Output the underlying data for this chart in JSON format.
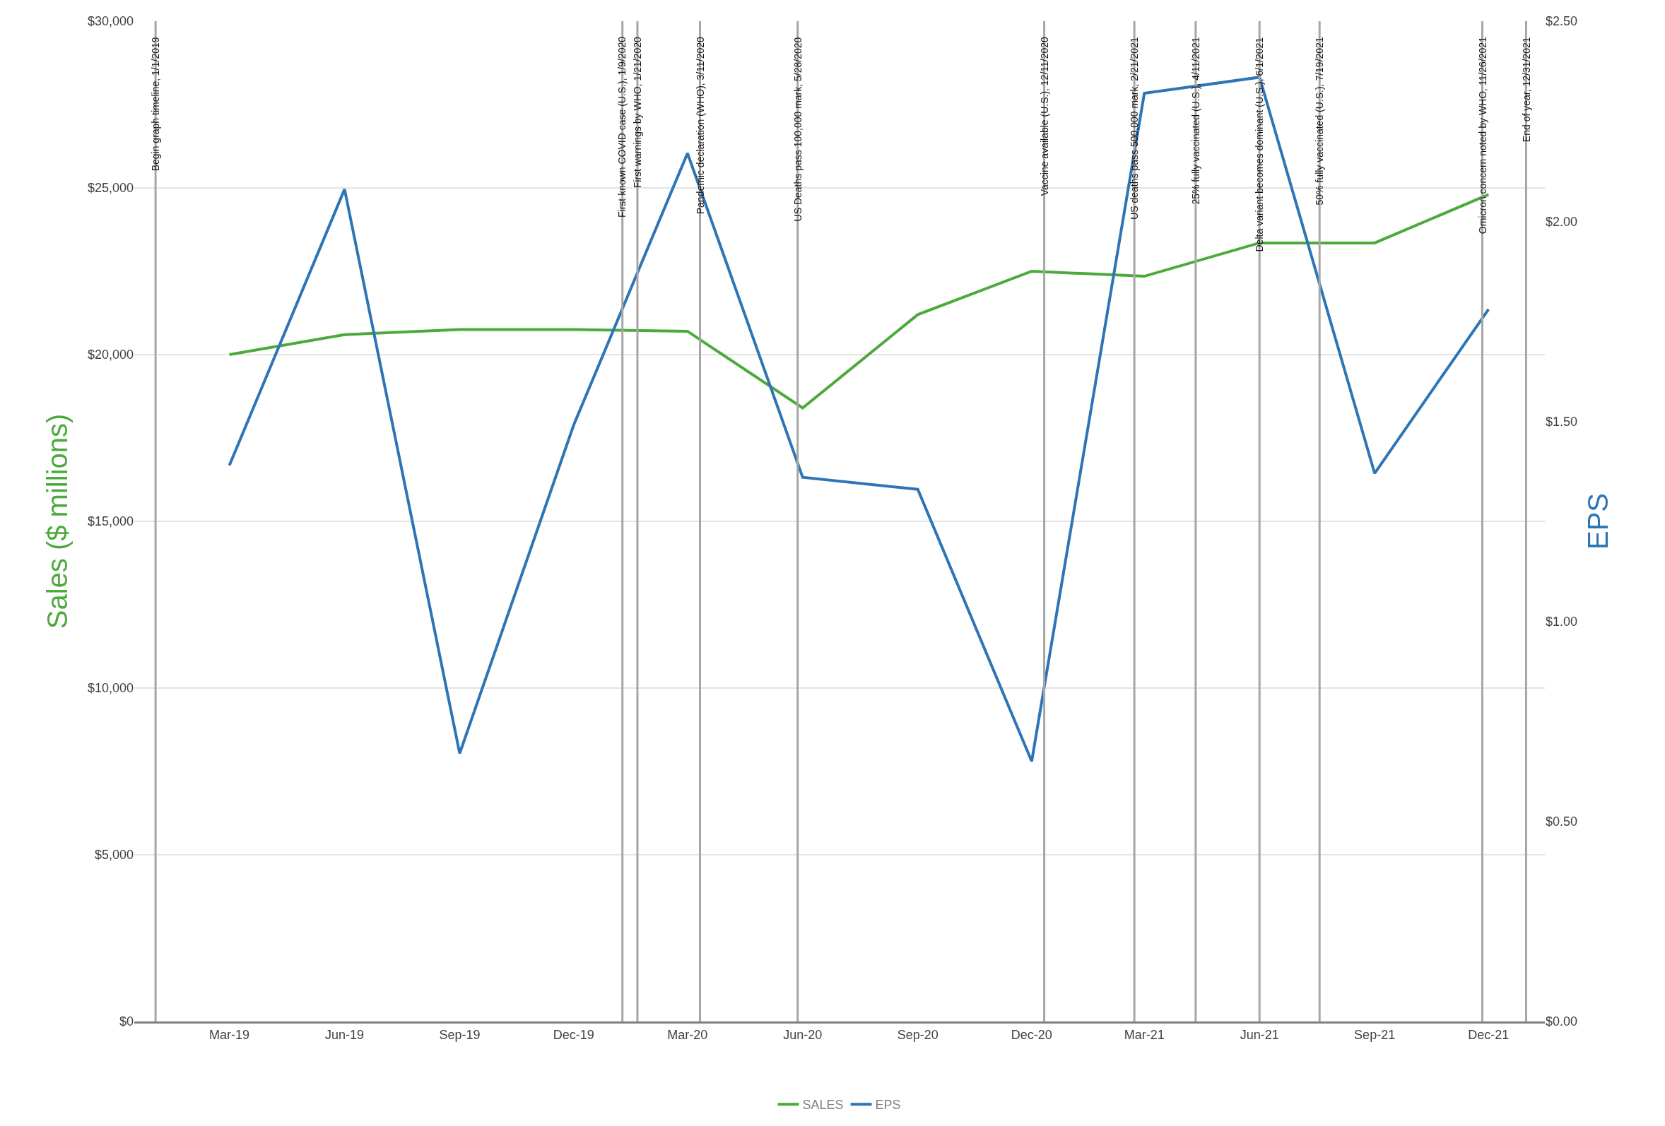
{
  "chart_data": {
    "type": "line",
    "ylabel": "Sales ($ millions)",
    "y2label": "EPS",
    "x": [
      "2019-03-01",
      "2019-06-01",
      "2019-09-01",
      "2019-12-01",
      "2020-03-01",
      "2020-06-01",
      "2020-09-01",
      "2020-12-01",
      "2021-03-01",
      "2021-06-01",
      "2021-09-01",
      "2021-12-01"
    ],
    "series": [
      {
        "name": "SALES",
        "color": "#4caa3c",
        "values": [
          20000,
          20600,
          20750,
          20750,
          20700,
          18400,
          21200,
          22500,
          22350,
          23350,
          23350,
          24800
        ]
      },
      {
        "name": "EPS",
        "color": "#2e75b6",
        "axis": "y2",
        "values": [
          1.39,
          2.08,
          0.67,
          1.49,
          2.17,
          1.36,
          1.33,
          0.65,
          2.32,
          2.36,
          1.37,
          1.78
        ]
      }
    ],
    "xlim": [
      "2018-12-15",
      "2022-01-15"
    ],
    "xticks": [
      {
        "value": "2019-03-01",
        "label": "Mar-19"
      },
      {
        "value": "2019-06-01",
        "label": "Jun-19"
      },
      {
        "value": "2019-09-01",
        "label": "Sep-19"
      },
      {
        "value": "2019-12-01",
        "label": "Dec-19"
      },
      {
        "value": "2020-03-01",
        "label": "Mar-20"
      },
      {
        "value": "2020-06-01",
        "label": "Jun-20"
      },
      {
        "value": "2020-09-01",
        "label": "Sep-20"
      },
      {
        "value": "2020-12-01",
        "label": "Dec-20"
      },
      {
        "value": "2021-03-01",
        "label": "Mar-21"
      },
      {
        "value": "2021-06-01",
        "label": "Jun-21"
      },
      {
        "value": "2021-09-01",
        "label": "Sep-21"
      },
      {
        "value": "2021-12-01",
        "label": "Dec-21"
      }
    ],
    "ylim": [
      0,
      30000
    ],
    "yticks": [
      {
        "value": 0,
        "label": "$0"
      },
      {
        "value": 5000,
        "label": "$5,000"
      },
      {
        "value": 10000,
        "label": "$10,000"
      },
      {
        "value": 15000,
        "label": "$15,000"
      },
      {
        "value": 20000,
        "label": "$20,000"
      },
      {
        "value": 25000,
        "label": "$25,000"
      },
      {
        "value": 30000,
        "label": "$30,000"
      }
    ],
    "y2lim": [
      0,
      2.5
    ],
    "y2ticks": [
      {
        "value": 0,
        "label": "$0.00"
      },
      {
        "value": 0.5,
        "label": "$0.50"
      },
      {
        "value": 1,
        "label": "$1.00"
      },
      {
        "value": 1.5,
        "label": "$1.50"
      },
      {
        "value": 2,
        "label": "$2.00"
      },
      {
        "value": 2.5,
        "label": "$2.50"
      }
    ],
    "ref_lines": [
      {
        "axis": "x",
        "value": "2019-01-01",
        "label": "Begin graph timeline, 1/1/2019",
        "color": "#a6a6a6"
      },
      {
        "axis": "x",
        "value": "2020-01-09",
        "label": "First known COVID case (U.S.), 1/9/2020",
        "color": "#a6a6a6"
      },
      {
        "axis": "x",
        "value": "2020-01-21",
        "label": "First warnings by WHO, 1/21/2020",
        "color": "#a6a6a6"
      },
      {
        "axis": "x",
        "value": "2020-03-11",
        "label": "Pandemic declaration (WHO), 3/11/2020",
        "color": "#a6a6a6"
      },
      {
        "axis": "x",
        "value": "2020-05-28",
        "label": "US Deaths pass 100,000 mark, 5/28/2020",
        "color": "#a6a6a6"
      },
      {
        "axis": "x",
        "value": "2020-12-11",
        "label": "Vaccine available (U.S.), 12/11/2020",
        "color": "#a6a6a6"
      },
      {
        "axis": "x",
        "value": "2021-02-21",
        "label": "US deaths pass 500,000 mark, 2/21/2021",
        "color": "#a6a6a6"
      },
      {
        "axis": "x",
        "value": "2021-04-11",
        "label": "25% fully vaccinated (U.S.), 4/11/2021",
        "color": "#a6a6a6"
      },
      {
        "axis": "x",
        "value": "2021-06-01",
        "label": "Delta variant becomes dominant (U.S.), 6/1/2021",
        "color": "#a6a6a6"
      },
      {
        "axis": "x",
        "value": "2021-07-19",
        "label": "50% fully vaccinated (U.S.), 7/19/2021",
        "color": "#a6a6a6"
      },
      {
        "axis": "x",
        "value": "2021-11-26",
        "label": "Omicron concern noted by WHO, 11/26/2021",
        "color": "#a6a6a6"
      },
      {
        "axis": "x",
        "value": "2021-12-31",
        "label": "End of year, 12/31/2021",
        "color": "#a6a6a6"
      }
    ],
    "grid": "y",
    "legend": "bottom",
    "line_style": "solid",
    "marker": "none"
  }
}
